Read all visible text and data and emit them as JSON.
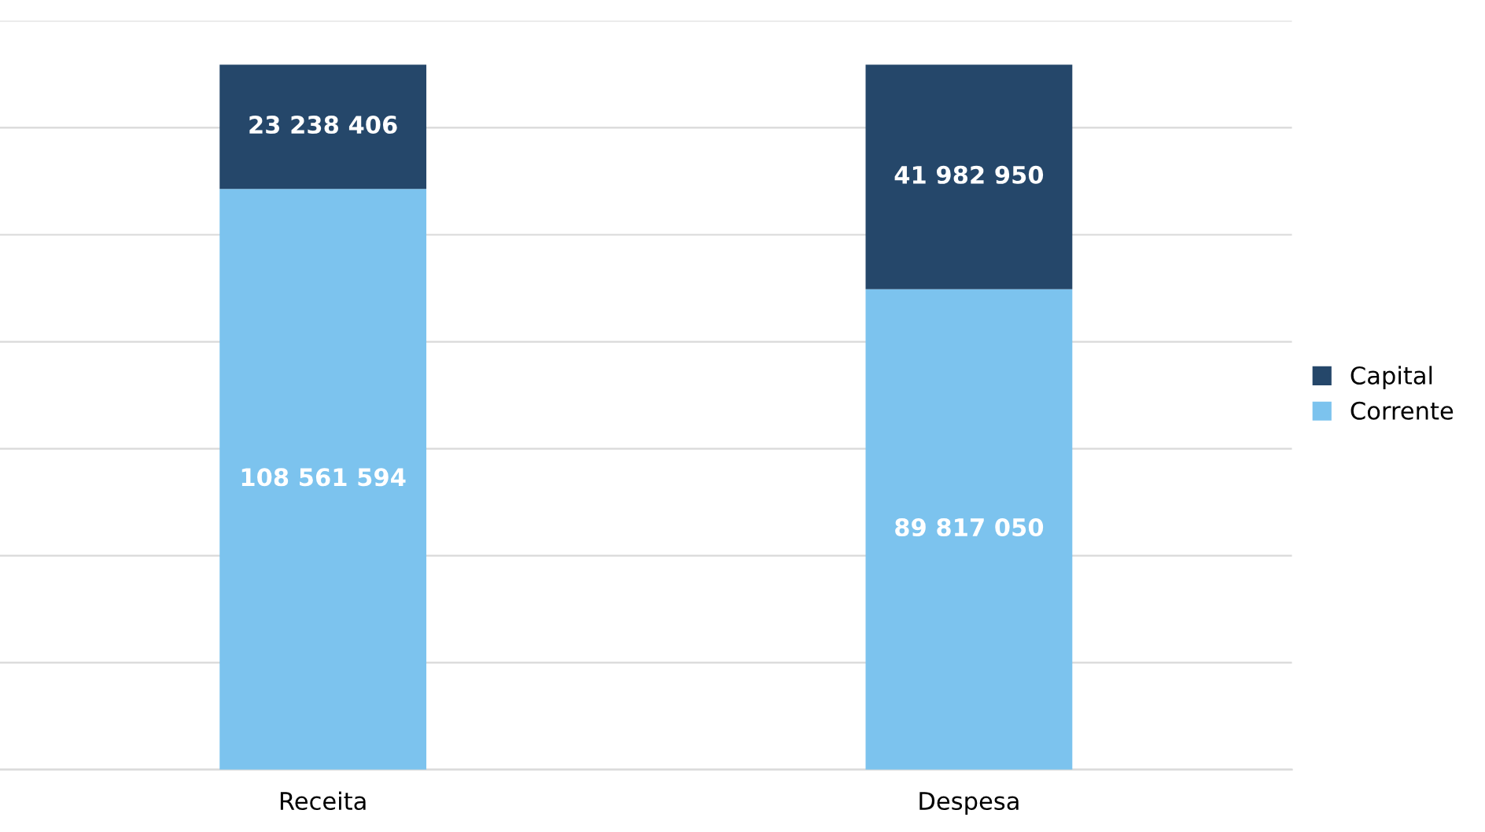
{
  "chart_data": {
    "type": "bar",
    "stacked": true,
    "categories": [
      "Receita",
      "Despesa"
    ],
    "series": [
      {
        "name": "Corrente",
        "color": "#7cc3ee",
        "values": [
          108561594,
          89817050
        ],
        "value_labels": [
          "108 561 594",
          "89 817 050"
        ]
      },
      {
        "name": "Capital",
        "color": "#25476a",
        "values": [
          23238406,
          41982950
        ],
        "value_labels": [
          "23 238 406",
          "41 982 950"
        ]
      }
    ],
    "ylim": [
      0,
      140000000
    ],
    "yticks": [
      {
        "value": 0,
        "label": null
      },
      {
        "value": 20000000,
        "label": null
      },
      {
        "value": 40000000,
        "label": null
      },
      {
        "value": 60000000,
        "label": null
      },
      {
        "value": 80000000,
        "label": null
      },
      {
        "value": 100000000,
        "label": null
      },
      {
        "value": 120000000,
        "label": null
      },
      {
        "value": 140000000,
        "label": null
      }
    ],
    "grid": "y",
    "legend": "right",
    "tick_labels": "x"
  }
}
